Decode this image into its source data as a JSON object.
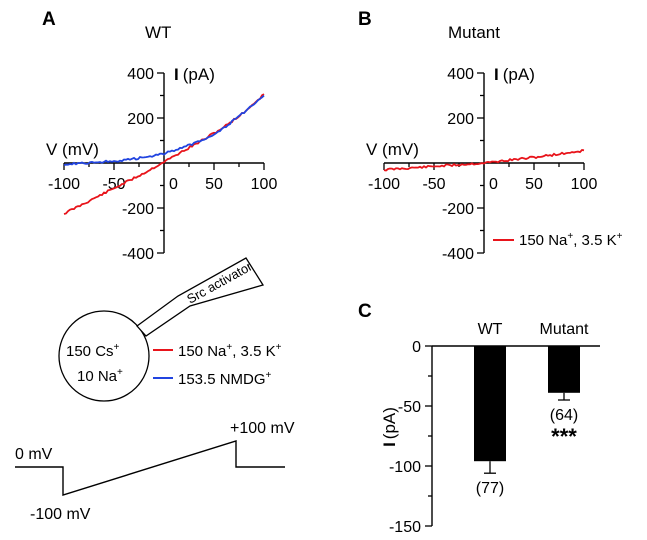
{
  "panel_labels": [
    "A",
    "B",
    "C"
  ],
  "iv_axis": {
    "ylabel_symbol": "I",
    "ylabel_unit": "(pA)",
    "xlabel": "V (mV)",
    "x_ticks": [
      "-100",
      "-50",
      "0",
      "50",
      "100"
    ],
    "y_ticks": [
      "400",
      "200",
      "-200",
      "-400"
    ]
  },
  "schematic": {
    "src_activator": "Src activator",
    "pipette_line1_main": "150 Cs",
    "pipette_line1_sup": "+",
    "pipette_line2_main": "10 Na",
    "pipette_line2_sup": "+",
    "legend_red_part1": "150 Na",
    "legend_red_sup1": "+",
    "legend_red_part2": ", 3.5 K",
    "legend_red_sup2": "+",
    "legend_blue_main": "153.5 NMDG",
    "legend_blue_sup": "+",
    "protocol_hold": "0 mV",
    "protocol_start": "-100 mV",
    "protocol_end": "+100 mV"
  },
  "colors": {
    "red": "#e8141b",
    "blue": "#2144e0",
    "black": "#000000"
  },
  "chart_data": [
    {
      "panel": "A",
      "type": "line",
      "title": "WT",
      "xlabel": "V (mV)",
      "ylabel": "I (pA)",
      "xlim": [
        -100,
        100
      ],
      "ylim": [
        -400,
        400
      ],
      "series": [
        {
          "name": "150 Na+, 3.5 K+",
          "color": "#e8141b",
          "x": [
            -100,
            -80,
            -60,
            -40,
            -20,
            0,
            20,
            40,
            60,
            80,
            100
          ],
          "y": [
            -225,
            -180,
            -135,
            -90,
            -45,
            5,
            55,
            105,
            160,
            225,
            305
          ]
        },
        {
          "name": "153.5 NMDG+",
          "color": "#2144e0",
          "x": [
            -100,
            -80,
            -60,
            -40,
            -20,
            0,
            20,
            40,
            60,
            80,
            100
          ],
          "y": [
            -5,
            0,
            5,
            12,
            25,
            42,
            70,
            105,
            155,
            225,
            295
          ]
        }
      ]
    },
    {
      "panel": "B",
      "type": "line",
      "title": "Mutant",
      "xlabel": "V (mV)",
      "ylabel": "I (pA)",
      "xlim": [
        -100,
        100
      ],
      "ylim": [
        -400,
        400
      ],
      "series": [
        {
          "name": "150 Na+, 3.5 K+",
          "color": "#e8141b",
          "x": [
            -100,
            -50,
            0,
            50,
            100
          ],
          "y": [
            -30,
            -15,
            0,
            25,
            55
          ]
        }
      ]
    },
    {
      "panel": "C",
      "type": "bar",
      "xlabel": "",
      "ylabel": "I (pA)",
      "ylim": [
        -150,
        0
      ],
      "y_ticks": [
        "0",
        "-50",
        "-100",
        "-150"
      ],
      "categories": [
        "WT",
        "Mutant"
      ],
      "values": [
        -96,
        -39
      ],
      "errors": [
        10,
        6
      ],
      "n_labels": [
        "(77)",
        "(64)"
      ],
      "significance": [
        "",
        "***"
      ]
    }
  ]
}
